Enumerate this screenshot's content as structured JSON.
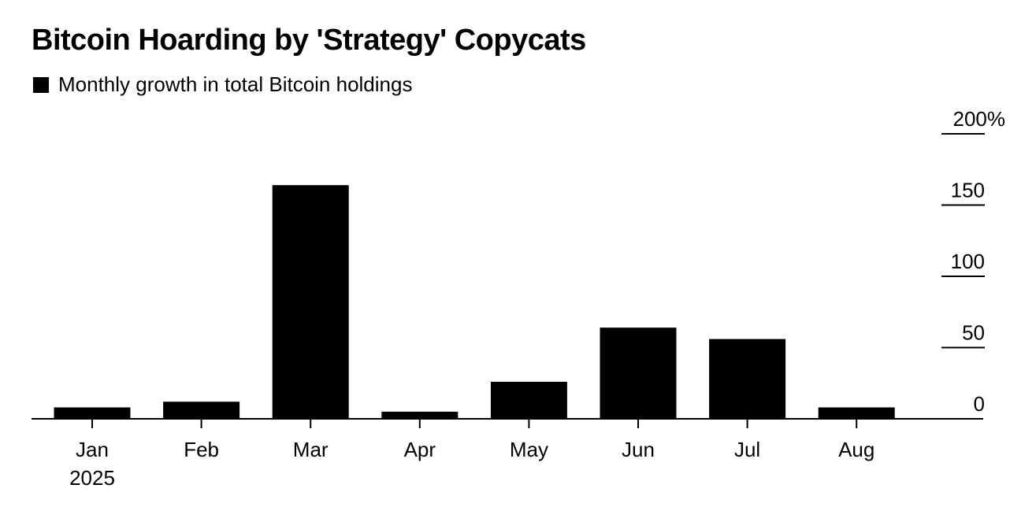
{
  "chart_data": {
    "type": "bar",
    "title": "Bitcoin Hoarding by 'Strategy' Copycats",
    "legend": [
      "Monthly growth in total Bitcoin holdings"
    ],
    "categories": [
      "Jan",
      "Feb",
      "Mar",
      "Apr",
      "May",
      "Jun",
      "Jul",
      "Aug"
    ],
    "year_label": "2025",
    "values": [
      8,
      12,
      164,
      5,
      26,
      64,
      56,
      8
    ],
    "ylim": [
      0,
      200
    ],
    "yticks": [
      0,
      50,
      100,
      150,
      200
    ],
    "ytick_labels": [
      "0",
      "50",
      "100",
      "150",
      "200%"
    ],
    "y_axis_position": "right",
    "grid": false,
    "colors": {
      "bar": "#000000",
      "background": "#fffffe"
    }
  }
}
